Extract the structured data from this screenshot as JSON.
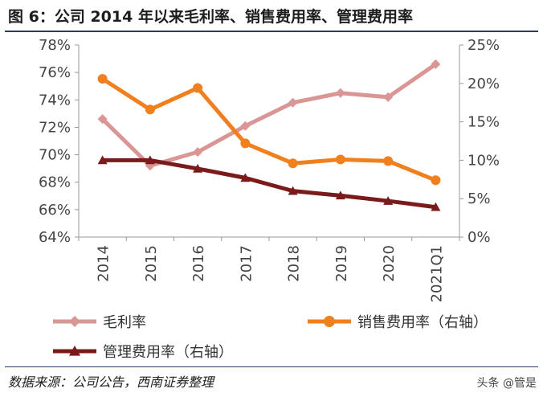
{
  "figure": {
    "title": "图 6：公司 2014 年以来毛利率、销售费用率、管理费用率",
    "source": "数据来源：公司公告，西南证券整理",
    "watermark": "头条 @管是"
  },
  "chart_data": {
    "type": "line",
    "categories": [
      "2014",
      "2015",
      "2016",
      "2017",
      "2018",
      "2019",
      "2020",
      "2021Q1"
    ],
    "y_left": {
      "min": 64,
      "max": 78,
      "step": 2,
      "ticks": [
        "64%",
        "66%",
        "68%",
        "70%",
        "72%",
        "74%",
        "76%",
        "78%"
      ]
    },
    "y_right": {
      "min": 0,
      "max": 25,
      "step": 5,
      "ticks": [
        "0%",
        "5%",
        "10%",
        "15%",
        "20%",
        "25%"
      ]
    },
    "series": [
      {
        "name": "毛利率",
        "axis": "left",
        "color": "#d99694",
        "marker": "diamond",
        "values": [
          72.6,
          69.2,
          70.2,
          72.1,
          73.8,
          74.5,
          74.2,
          76.6
        ]
      },
      {
        "name": "销售费用率（右轴）",
        "axis": "right",
        "color": "#f07f1e",
        "marker": "circle",
        "values": [
          20.6,
          16.6,
          19.4,
          12.2,
          9.6,
          10.1,
          9.9,
          7.4
        ]
      },
      {
        "name": "管理费用率（右轴）",
        "axis": "right",
        "color": "#7b1a1a",
        "marker": "triangle",
        "values": [
          10.0,
          10.0,
          8.9,
          7.7,
          6.0,
          5.4,
          4.7,
          3.9
        ]
      }
    ],
    "legend": [
      {
        "label": "毛利率"
      },
      {
        "label": "销售费用率（右轴）"
      },
      {
        "label": "管理费用率（右轴）"
      }
    ],
    "grid": false
  }
}
